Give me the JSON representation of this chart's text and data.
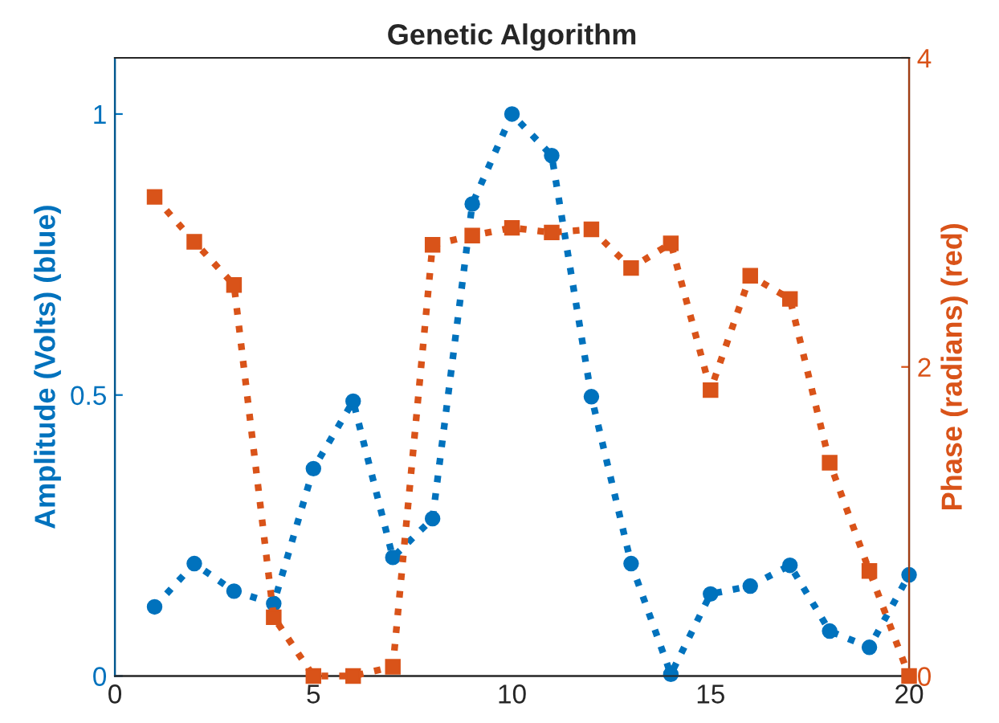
{
  "chart_data": {
    "type": "line",
    "title": "Genetic Algorithm",
    "ylabel": "Amplitude (Volts) (blue)",
    "y2label": "Phase (radians) (red)",
    "x": [
      1,
      2,
      3,
      4,
      5,
      6,
      7,
      8,
      9,
      10,
      11,
      12,
      13,
      14,
      15,
      16,
      17,
      18,
      19,
      20
    ],
    "series": [
      {
        "color": "#0072bd",
        "marker": "circle",
        "values": [
          0.123,
          0.2,
          0.151,
          0.129,
          0.369,
          0.489,
          0.211,
          0.28,
          0.84,
          1.0,
          0.926,
          0.497,
          0.2,
          0.003,
          0.146,
          0.16,
          0.197,
          0.08,
          0.051,
          0.18
        ]
      },
      {
        "color": "#d95319",
        "marker": "square",
        "axis": "y2",
        "values": [
          3.1,
          2.81,
          2.53,
          0.38,
          0,
          0,
          0.06,
          2.79,
          2.85,
          2.9,
          2.87,
          2.89,
          2.64,
          2.8,
          1.85,
          2.59,
          2.44,
          1.38,
          0.68,
          0
        ]
      }
    ],
    "line_style": "dotted",
    "xlim": [
      0,
      20
    ],
    "xticks": [
      0,
      5,
      10,
      15,
      20
    ],
    "ylim": [
      0,
      1.1
    ],
    "yticks": [
      0,
      0.5,
      1
    ],
    "y2lim": [
      0,
      4
    ],
    "y2ticks": [
      0,
      2,
      4
    ],
    "grid": false,
    "legend": false
  }
}
